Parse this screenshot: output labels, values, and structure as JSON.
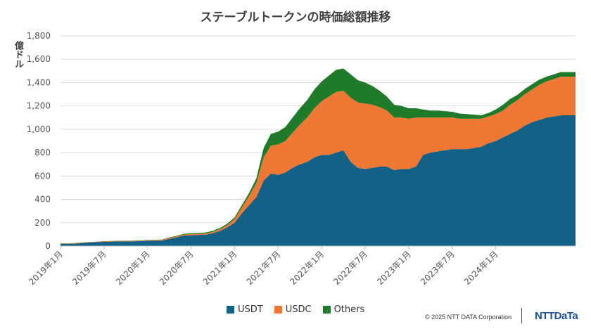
{
  "title": "ステーブルトークンの時価総額推移",
  "ylabel": "億ドル",
  "copyright": "© 2025 NTT DATA Corporation",
  "logo": "NTTDaTa",
  "colors": {
    "USDT": "#146187",
    "USDC": "#ee7733",
    "Others": "#1f7a2a",
    "grid": "#d9d9d9"
  },
  "chart_data": {
    "type": "area",
    "stacked": true,
    "title": "ステーブルトークンの時価総額推移",
    "ylabel": "億ドル",
    "ylim": [
      0,
      1800
    ],
    "yticks": [
      0,
      200,
      400,
      600,
      800,
      1000,
      1200,
      1400,
      1600,
      1800
    ],
    "ytick_labels": [
      "0",
      "200",
      "400",
      "600",
      "800",
      "1,000",
      "1,200",
      "1,400",
      "1,600",
      "1,800"
    ],
    "xlim": [
      "2019-01",
      "2024-12"
    ],
    "xticks": [
      "2019年1月",
      "2019年7月",
      "2020年1月",
      "2020年7月",
      "2021年1月",
      "2021年7月",
      "2022年1月",
      "2022年7月",
      "2023年1月",
      "2023年7月",
      "2024年1月"
    ],
    "grid": "horizontal",
    "legend": "bottom",
    "x": [
      "2019-01",
      "2019-02",
      "2019-03",
      "2019-04",
      "2019-05",
      "2019-06",
      "2019-07",
      "2019-08",
      "2019-09",
      "2019-10",
      "2019-11",
      "2019-12",
      "2020-01",
      "2020-02",
      "2020-03",
      "2020-04",
      "2020-05",
      "2020-06",
      "2020-07",
      "2020-08",
      "2020-09",
      "2020-10",
      "2020-11",
      "2020-12",
      "2021-01",
      "2021-02",
      "2021-03",
      "2021-04",
      "2021-05",
      "2021-06",
      "2021-07",
      "2021-08",
      "2021-09",
      "2021-10",
      "2021-11",
      "2021-12",
      "2022-01",
      "2022-02",
      "2022-03",
      "2022-04",
      "2022-05",
      "2022-06",
      "2022-07",
      "2022-08",
      "2022-09",
      "2022-10",
      "2022-11",
      "2022-12",
      "2023-01",
      "2023-02",
      "2023-03",
      "2023-04",
      "2023-05",
      "2023-06",
      "2023-07",
      "2023-08",
      "2023-09",
      "2023-10",
      "2023-11",
      "2023-12",
      "2024-01",
      "2024-02",
      "2024-03",
      "2024-04",
      "2024-05",
      "2024-06",
      "2024-07",
      "2024-08",
      "2024-09",
      "2024-10",
      "2024-11",
      "2024-12"
    ],
    "series": [
      {
        "name": "USDT",
        "values": [
          19,
          19,
          20,
          26,
          30,
          33,
          36,
          38,
          40,
          40,
          41,
          42,
          45,
          46,
          47,
          62,
          75,
          90,
          92,
          95,
          98,
          110,
          130,
          160,
          200,
          280,
          350,
          420,
          560,
          620,
          610,
          630,
          670,
          700,
          720,
          760,
          780,
          780,
          800,
          820,
          720,
          670,
          660,
          670,
          680,
          680,
          650,
          660,
          660,
          680,
          780,
          800,
          810,
          820,
          830,
          830,
          830,
          840,
          850,
          880,
          900,
          930,
          960,
          990,
          1030,
          1060,
          1080,
          1100,
          1110,
          1120,
          1120,
          1120
        ]
      },
      {
        "name": "USDC",
        "values": [
          3,
          3,
          3,
          3,
          3,
          3,
          4,
          4,
          4,
          4,
          4,
          4,
          5,
          5,
          6,
          8,
          8,
          9,
          10,
          10,
          10,
          12,
          15,
          20,
          30,
          50,
          80,
          120,
          200,
          240,
          260,
          270,
          300,
          340,
          380,
          420,
          460,
          500,
          520,
          510,
          550,
          560,
          560,
          540,
          510,
          480,
          450,
          440,
          430,
          420,
          320,
          300,
          290,
          280,
          270,
          260,
          260,
          250,
          240,
          230,
          230,
          230,
          250,
          260,
          270,
          280,
          300,
          310,
          320,
          330,
          330,
          330
        ]
      },
      {
        "name": "Others",
        "values": [
          2,
          2,
          2,
          2,
          2,
          2,
          2,
          2,
          2,
          2,
          2,
          2,
          2,
          2,
          3,
          4,
          5,
          6,
          7,
          7,
          8,
          9,
          10,
          12,
          15,
          20,
          25,
          40,
          80,
          100,
          110,
          120,
          130,
          140,
          150,
          160,
          170,
          180,
          190,
          190,
          200,
          190,
          180,
          160,
          140,
          120,
          110,
          100,
          90,
          80,
          70,
          60,
          60,
          55,
          50,
          45,
          40,
          35,
          30,
          30,
          40,
          50,
          50,
          45,
          45,
          45,
          45,
          40,
          40,
          40,
          40,
          40
        ]
      }
    ]
  }
}
